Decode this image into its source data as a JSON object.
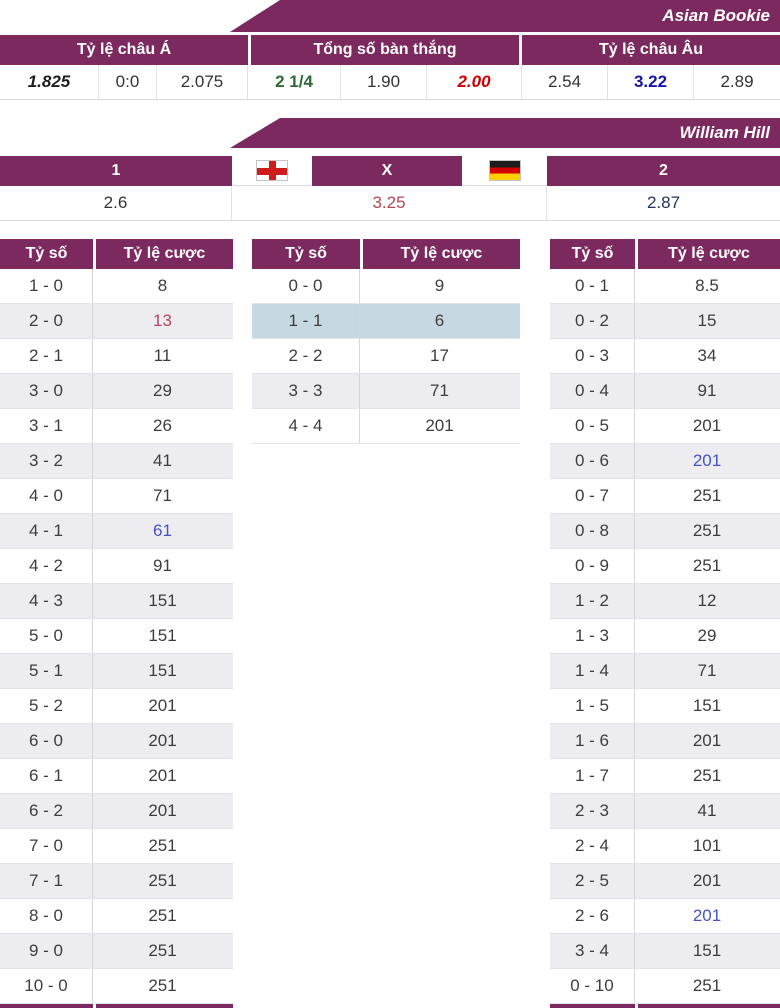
{
  "colors": {
    "purple": "#7c2960",
    "row_alt": "#ececf1",
    "row_highlight": "#c6d9e2",
    "odds_red": "#b5475a",
    "odds_red_bright": "#cc0000",
    "odds_blue": "#4553c4",
    "odds_blue_dark": "#1515aa",
    "odds_green": "#2e6b34",
    "odds_navy": "#22335e"
  },
  "asian_section": {
    "banner": "Asian Bookie",
    "headers": [
      "Tỷ lệ châu Á",
      "Tổng số bàn thắng",
      "Tỷ lệ châu Âu"
    ],
    "odds": [
      {
        "value": "1.825",
        "style": "bold-italic"
      },
      {
        "value": "0:0"
      },
      {
        "value": "2.075"
      },
      {
        "value": "2 1/4",
        "style": "green-bold"
      },
      {
        "value": "1.90"
      },
      {
        "value": "2.00",
        "style": "red-bold-italic"
      },
      {
        "value": "2.54"
      },
      {
        "value": "3.22",
        "style": "blue-bold"
      },
      {
        "value": "2.89"
      }
    ]
  },
  "williamhill_section": {
    "banner": "William Hill",
    "selections": [
      "1",
      "X",
      "2"
    ],
    "flags": [
      "england-flag",
      "germany-flag"
    ],
    "odds": [
      {
        "value": "2.6"
      },
      {
        "value": "3.25",
        "style": "red"
      },
      {
        "value": "2.87",
        "style": "navy"
      }
    ]
  },
  "score_tables": [
    {
      "headers": [
        "Tỷ số",
        "Tỷ lệ cược"
      ],
      "rows": [
        {
          "score": "1 - 0",
          "odds": "8"
        },
        {
          "score": "2 - 0",
          "odds": "13",
          "color": "red"
        },
        {
          "score": "2 - 1",
          "odds": "11"
        },
        {
          "score": "3 - 0",
          "odds": "29"
        },
        {
          "score": "3 - 1",
          "odds": "26"
        },
        {
          "score": "3 - 2",
          "odds": "41"
        },
        {
          "score": "4 - 0",
          "odds": "71"
        },
        {
          "score": "4 - 1",
          "odds": "61",
          "color": "blue"
        },
        {
          "score": "4 - 2",
          "odds": "91"
        },
        {
          "score": "4 - 3",
          "odds": "151"
        },
        {
          "score": "5 - 0",
          "odds": "151"
        },
        {
          "score": "5 - 1",
          "odds": "151"
        },
        {
          "score": "5 - 2",
          "odds": "201"
        },
        {
          "score": "6 - 0",
          "odds": "201"
        },
        {
          "score": "6 - 1",
          "odds": "201"
        },
        {
          "score": "6 - 2",
          "odds": "201"
        },
        {
          "score": "7 - 0",
          "odds": "251"
        },
        {
          "score": "7 - 1",
          "odds": "251"
        },
        {
          "score": "8 - 0",
          "odds": "251"
        },
        {
          "score": "9 - 0",
          "odds": "251"
        },
        {
          "score": "10 - 0",
          "odds": "251"
        }
      ]
    },
    {
      "headers": [
        "Tỷ số",
        "Tỷ lệ cược"
      ],
      "rows": [
        {
          "score": "0 - 0",
          "odds": "9"
        },
        {
          "score": "1 - 1",
          "odds": "6",
          "highlight": true
        },
        {
          "score": "2 - 2",
          "odds": "17"
        },
        {
          "score": "3 - 3",
          "odds": "71"
        },
        {
          "score": "4 - 4",
          "odds": "201"
        }
      ]
    },
    {
      "headers": [
        "Tỷ số",
        "Tỷ lệ cược"
      ],
      "rows": [
        {
          "score": "0 - 1",
          "odds": "8.5"
        },
        {
          "score": "0 - 2",
          "odds": "15"
        },
        {
          "score": "0 - 3",
          "odds": "34"
        },
        {
          "score": "0 - 4",
          "odds": "91"
        },
        {
          "score": "0 - 5",
          "odds": "201"
        },
        {
          "score": "0 - 6",
          "odds": "201",
          "color": "blue"
        },
        {
          "score": "0 - 7",
          "odds": "251"
        },
        {
          "score": "0 - 8",
          "odds": "251"
        },
        {
          "score": "0 - 9",
          "odds": "251"
        },
        {
          "score": "1 - 2",
          "odds": "12"
        },
        {
          "score": "1 - 3",
          "odds": "29"
        },
        {
          "score": "1 - 4",
          "odds": "71"
        },
        {
          "score": "1 - 5",
          "odds": "151"
        },
        {
          "score": "1 - 6",
          "odds": "201"
        },
        {
          "score": "1 - 7",
          "odds": "251"
        },
        {
          "score": "2 - 3",
          "odds": "41"
        },
        {
          "score": "2 - 4",
          "odds": "101"
        },
        {
          "score": "2 - 5",
          "odds": "201"
        },
        {
          "score": "2 - 6",
          "odds": "201",
          "color": "blue"
        },
        {
          "score": "3 - 4",
          "odds": "151"
        },
        {
          "score": "0 - 10",
          "odds": "251"
        }
      ]
    }
  ]
}
